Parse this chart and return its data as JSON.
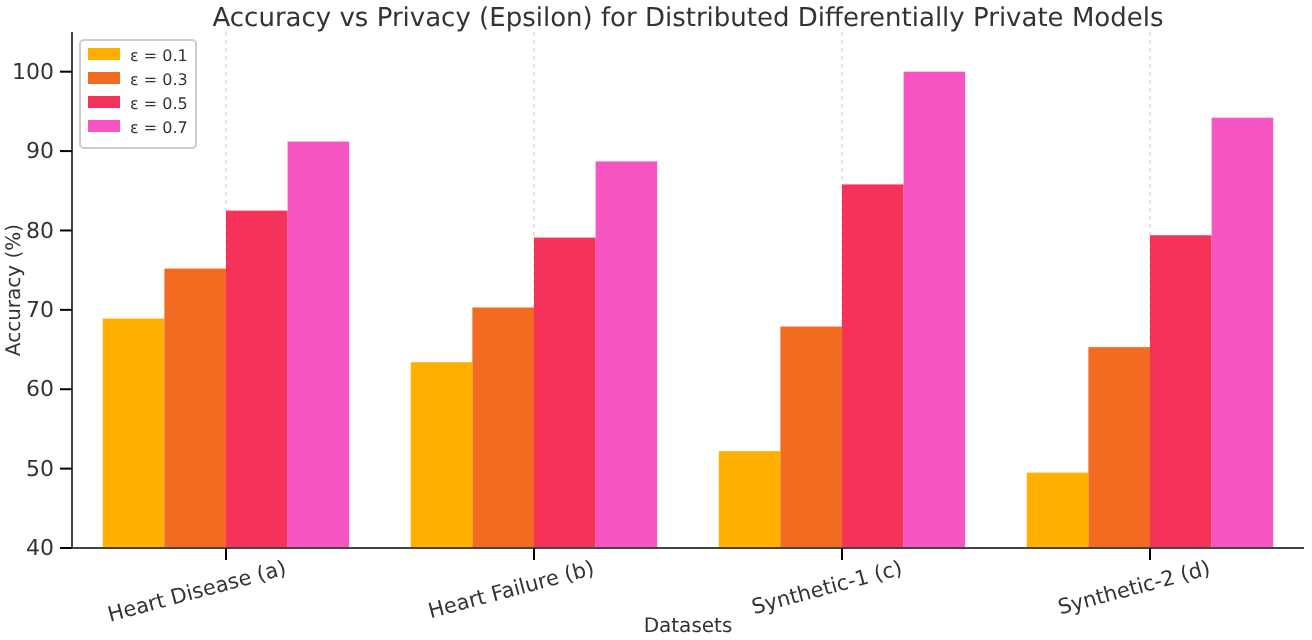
{
  "chart_data": {
    "type": "bar",
    "title": "Accuracy vs Privacy (Epsilon) for Distributed Differentially Private Models",
    "xlabel": "Datasets",
    "ylabel": "Accuracy (%)",
    "categories": [
      "Heart Disease (a)",
      "Heart Failure (b)",
      "Synthetic-1 (c)",
      "Synthetic-2 (d)"
    ],
    "series": [
      {
        "name": "ε = 0.1",
        "color": "#ffb000",
        "values": [
          68.9,
          63.4,
          52.2,
          49.5
        ]
      },
      {
        "name": "ε = 0.3",
        "color": "#f26b21",
        "values": [
          75.2,
          70.3,
          67.9,
          65.3
        ]
      },
      {
        "name": "ε = 0.5",
        "color": "#f5325a",
        "values": [
          82.5,
          79.1,
          85.8,
          79.4
        ]
      },
      {
        "name": "ε = 0.7",
        "color": "#f755c1",
        "values": [
          91.2,
          88.7,
          100,
          94.2
        ]
      }
    ],
    "ylim": [
      40,
      105
    ],
    "yticks": [
      40,
      50,
      60,
      70,
      80,
      90,
      100
    ],
    "grid": "x",
    "legend": "top left"
  }
}
